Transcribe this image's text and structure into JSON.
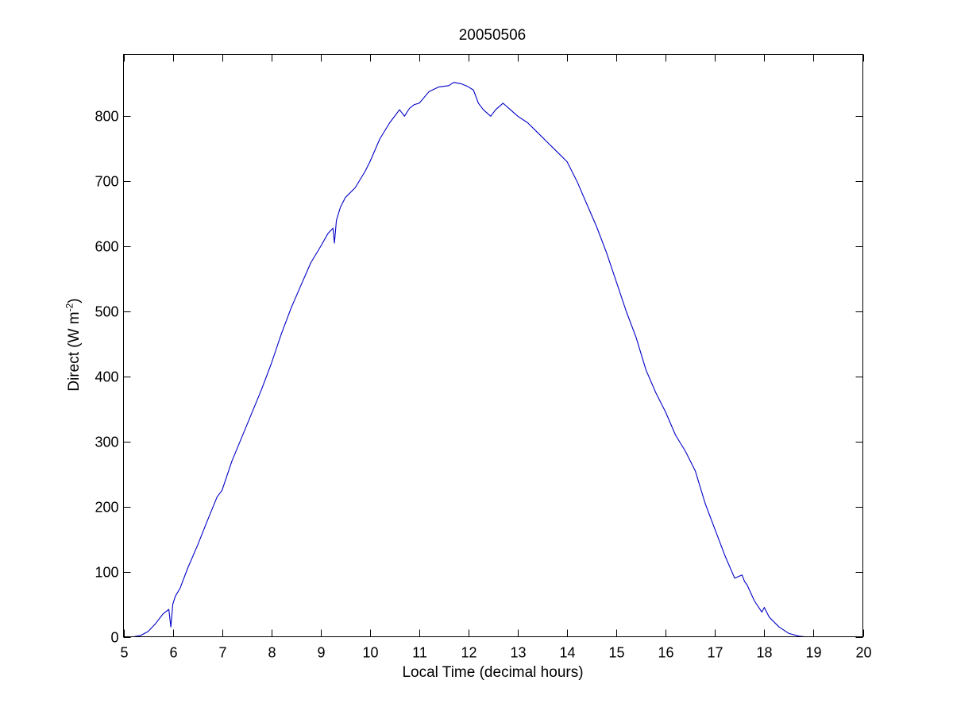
{
  "chart_data": {
    "type": "line",
    "title": "20050506",
    "xlabel": "Local Time (decimal hours)",
    "ylabel": {
      "text": "Direct (W m",
      "superscript": "-2",
      "close": ")"
    },
    "xlim": [
      5,
      20
    ],
    "ylim": [
      0,
      895
    ],
    "xticks": [
      5,
      6,
      7,
      8,
      9,
      10,
      11,
      12,
      13,
      14,
      15,
      16,
      17,
      18,
      19,
      20
    ],
    "yticks": [
      0,
      100,
      200,
      300,
      400,
      500,
      600,
      700,
      800
    ],
    "grid": false,
    "line_color": "#0000c8",
    "series": [
      {
        "x": [
          5.2,
          5.35,
          5.5,
          5.65,
          5.8,
          5.92,
          5.96,
          6.0,
          6.05,
          6.15,
          6.3,
          6.5,
          6.7,
          6.9,
          7.0,
          7.2,
          7.5,
          7.8,
          8.0,
          8.2,
          8.4,
          8.6,
          8.8,
          9.0,
          9.15,
          9.25,
          9.28,
          9.32,
          9.4,
          9.5,
          9.7,
          9.9,
          10.0,
          10.2,
          10.4,
          10.6,
          10.7,
          10.8,
          10.9,
          11.0,
          11.2,
          11.4,
          11.6,
          11.7,
          11.85,
          12.0,
          12.1,
          12.2,
          12.3,
          12.45,
          12.55,
          12.7,
          12.85,
          13.0,
          13.2,
          13.4,
          13.6,
          13.8,
          14.0,
          14.2,
          14.4,
          14.6,
          14.8,
          15.0,
          15.2,
          15.4,
          15.6,
          15.8,
          16.0,
          16.2,
          16.4,
          16.6,
          16.8,
          17.0,
          17.2,
          17.4,
          17.55,
          17.6,
          17.65,
          17.8,
          17.95,
          18.0,
          18.1,
          18.3,
          18.5,
          18.7,
          18.82
        ],
        "y": [
          0,
          2,
          8,
          20,
          35,
          42,
          15,
          50,
          62,
          75,
          105,
          140,
          178,
          215,
          225,
          270,
          325,
          380,
          420,
          465,
          505,
          540,
          575,
          600,
          620,
          628,
          605,
          640,
          660,
          675,
          690,
          715,
          730,
          765,
          790,
          810,
          800,
          812,
          818,
          820,
          838,
          845,
          847,
          852,
          850,
          845,
          840,
          820,
          810,
          800,
          810,
          820,
          810,
          800,
          790,
          775,
          760,
          745,
          730,
          700,
          665,
          630,
          590,
          545,
          500,
          460,
          410,
          375,
          345,
          310,
          285,
          255,
          205,
          165,
          125,
          90,
          95,
          85,
          80,
          55,
          38,
          45,
          30,
          15,
          5,
          1,
          0
        ]
      }
    ]
  }
}
